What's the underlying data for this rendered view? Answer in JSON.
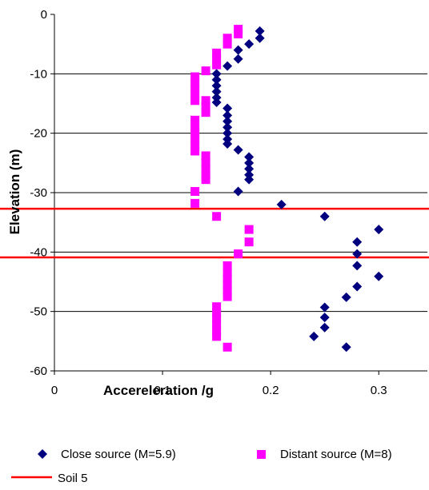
{
  "chart_data": {
    "type": "scatter",
    "title": "",
    "xlabel": "Accereleration /g",
    "ylabel": "Elevation (m)",
    "xlim": [
      0,
      0.345
    ],
    "ylim": [
      -60,
      0
    ],
    "x_ticks": [
      0,
      0.1,
      0.2,
      0.3
    ],
    "x_tick_labels": [
      "0",
      "0.1",
      "0.2",
      "0.3"
    ],
    "y_ticks": [
      0,
      -10,
      -20,
      -30,
      -40,
      -50,
      -60
    ],
    "y_tick_labels": [
      "0",
      "-10",
      "-20",
      "-30",
      "-40",
      "-50",
      "-60"
    ],
    "grid": "horizontal major lines",
    "legend_position": "bottom",
    "series": [
      {
        "name": "Close source (M=5.9)",
        "marker": "diamond",
        "color": "#00007f",
        "points": [
          [
            0.19,
            -2.8
          ],
          [
            0.19,
            -4.0
          ],
          [
            0.18,
            -5.0
          ],
          [
            0.17,
            -6.0
          ],
          [
            0.17,
            -7.5
          ],
          [
            0.16,
            -8.7
          ],
          [
            0.15,
            -10.0
          ],
          [
            0.15,
            -11.0
          ],
          [
            0.15,
            -12.0
          ],
          [
            0.15,
            -13.0
          ],
          [
            0.15,
            -14.0
          ],
          [
            0.15,
            -14.8
          ],
          [
            0.16,
            -15.8
          ],
          [
            0.16,
            -17.0
          ],
          [
            0.16,
            -18.0
          ],
          [
            0.16,
            -19.0
          ],
          [
            0.16,
            -20.0
          ],
          [
            0.16,
            -21.0
          ],
          [
            0.16,
            -21.8
          ],
          [
            0.17,
            -22.8
          ],
          [
            0.18,
            -24.0
          ],
          [
            0.18,
            -25.0
          ],
          [
            0.18,
            -26.0
          ],
          [
            0.18,
            -27.0
          ],
          [
            0.18,
            -27.8
          ],
          [
            0.17,
            -29.8
          ],
          [
            0.21,
            -32.0
          ],
          [
            0.25,
            -34.0
          ],
          [
            0.3,
            -36.2
          ],
          [
            0.28,
            -38.3
          ],
          [
            0.28,
            -40.3
          ],
          [
            0.28,
            -42.3
          ],
          [
            0.3,
            -44.1
          ],
          [
            0.28,
            -45.8
          ],
          [
            0.27,
            -47.6
          ],
          [
            0.25,
            -49.3
          ],
          [
            0.25,
            -51.0
          ],
          [
            0.25,
            -52.7
          ],
          [
            0.24,
            -54.2
          ],
          [
            0.27,
            -56.0
          ]
        ]
      },
      {
        "name": "Distant source (M=8)",
        "marker": "square",
        "color": "#ff00ff",
        "points": [
          [
            0.17,
            -2.5
          ],
          [
            0.17,
            -3.3
          ],
          [
            0.16,
            -4.0
          ],
          [
            0.16,
            -5.0
          ],
          [
            0.15,
            -6.5
          ],
          [
            0.15,
            -7.5
          ],
          [
            0.15,
            -8.5
          ],
          [
            0.14,
            -9.5
          ],
          [
            0.13,
            -10.5
          ],
          [
            0.13,
            -11.5
          ],
          [
            0.13,
            -12.5
          ],
          [
            0.13,
            -13.5
          ],
          [
            0.13,
            -14.5
          ],
          [
            0.14,
            -14.5
          ],
          [
            0.14,
            -15.5
          ],
          [
            0.14,
            -16.5
          ],
          [
            0.13,
            -17.8
          ],
          [
            0.13,
            -19.0
          ],
          [
            0.13,
            -20.0
          ],
          [
            0.13,
            -21.0
          ],
          [
            0.13,
            -22.0
          ],
          [
            0.13,
            -23.0
          ],
          [
            0.14,
            -23.8
          ],
          [
            0.14,
            -25.0
          ],
          [
            0.14,
            -26.0
          ],
          [
            0.14,
            -27.0
          ],
          [
            0.14,
            -27.8
          ],
          [
            0.13,
            -29.8
          ],
          [
            0.13,
            -31.8
          ],
          [
            0.15,
            -34.0
          ],
          [
            0.18,
            -36.2
          ],
          [
            0.18,
            -38.3
          ],
          [
            0.17,
            -40.3
          ],
          [
            0.16,
            -42.3
          ],
          [
            0.16,
            -43.5
          ],
          [
            0.16,
            -44.5
          ],
          [
            0.16,
            -45.5
          ],
          [
            0.16,
            -46.5
          ],
          [
            0.16,
            -47.5
          ],
          [
            0.15,
            -49.2
          ],
          [
            0.15,
            -50.2
          ],
          [
            0.15,
            -51.2
          ],
          [
            0.15,
            -52.2
          ],
          [
            0.15,
            -53.2
          ],
          [
            0.15,
            -54.2
          ],
          [
            0.16,
            -56.0
          ]
        ]
      }
    ],
    "reference_lines": [
      {
        "name": "Soil 5",
        "color": "#ff0000",
        "y_values": [
          -32.7,
          -40.9
        ]
      }
    ]
  }
}
